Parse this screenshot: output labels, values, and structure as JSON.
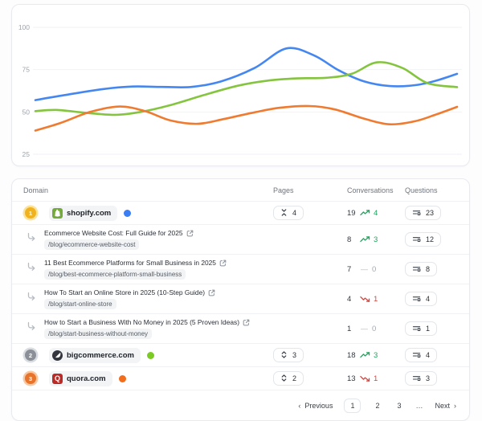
{
  "chart_data": {
    "type": "line",
    "title": "",
    "xlabel": "",
    "ylabel": "",
    "y_ticks": [
      100,
      75,
      50,
      25
    ],
    "ylim": [
      25,
      100
    ],
    "grid": true,
    "legend_position": "none",
    "series": [
      {
        "name": "shopify.com",
        "color": "#4587f1",
        "points": [
          [
            0,
            57
          ],
          [
            0.07,
            60
          ],
          [
            0.16,
            63.5
          ],
          [
            0.23,
            65
          ],
          [
            0.3,
            64.8
          ],
          [
            0.37,
            64.8
          ],
          [
            0.44,
            68
          ],
          [
            0.52,
            76
          ],
          [
            0.595,
            87.5
          ],
          [
            0.66,
            83.5
          ],
          [
            0.72,
            74.5
          ],
          [
            0.78,
            68
          ],
          [
            0.84,
            65.3
          ],
          [
            0.9,
            65.8
          ],
          [
            0.95,
            68.5
          ],
          [
            1,
            72.5
          ]
        ]
      },
      {
        "name": "bigcommerce.com",
        "color": "#84c43e",
        "points": [
          [
            0,
            50.5
          ],
          [
            0.05,
            51.2
          ],
          [
            0.12,
            49.5
          ],
          [
            0.19,
            48.3
          ],
          [
            0.25,
            50
          ],
          [
            0.32,
            54
          ],
          [
            0.4,
            60
          ],
          [
            0.48,
            65.5
          ],
          [
            0.55,
            68.5
          ],
          [
            0.62,
            69.8
          ],
          [
            0.69,
            70.2
          ],
          [
            0.75,
            72.5
          ],
          [
            0.81,
            79.3
          ],
          [
            0.87,
            76
          ],
          [
            0.93,
            67
          ],
          [
            1,
            64.7
          ]
        ]
      },
      {
        "name": "quora.com",
        "color": "#ef7b31",
        "points": [
          [
            0,
            39
          ],
          [
            0.06,
            43.5
          ],
          [
            0.13,
            50
          ],
          [
            0.2,
            53.2
          ],
          [
            0.26,
            50.5
          ],
          [
            0.32,
            45
          ],
          [
            0.385,
            43
          ],
          [
            0.45,
            46
          ],
          [
            0.52,
            49.8
          ],
          [
            0.58,
            52.5
          ],
          [
            0.65,
            53.5
          ],
          [
            0.71,
            51.5
          ],
          [
            0.78,
            46
          ],
          [
            0.84,
            42.7
          ],
          [
            0.9,
            44.5
          ],
          [
            0.95,
            48.5
          ],
          [
            1,
            53
          ]
        ]
      }
    ]
  },
  "table": {
    "headers": {
      "domain": "Domain",
      "pages": "Pages",
      "conversations": "Conversations",
      "questions": "Questions"
    },
    "rows": [
      {
        "rank": "1",
        "domain": "shopify.com",
        "legend_color": "#3b7df2",
        "pages_count": "4",
        "conv": "19",
        "conv_change": "4",
        "questions": "23",
        "pages": [
          {
            "title": "Ecommerce Website Cost: Full Guide for 2025",
            "path": "/blog/ecommerce-website-cost",
            "conv": "8",
            "conv_change": "3",
            "questions": "12"
          },
          {
            "title": "11 Best Ecommerce Platforms for Small Business in 2025",
            "path": "/blog/best-ecommerce-platform-small-business",
            "conv": "7",
            "conv_change": "0",
            "questions": "8"
          },
          {
            "title": "How To Start an Online Store in 2025 (10-Step Guide)",
            "path": "/blog/start-online-store",
            "conv": "4",
            "conv_change": "1",
            "questions": "4"
          },
          {
            "title": "How to Start a Business With No Money in 2025 (5 Proven Ideas)",
            "path": "/blog/start-business-without-money",
            "conv": "1",
            "conv_change": "0",
            "questions": "1"
          }
        ]
      },
      {
        "rank": "2",
        "domain": "bigcommerce.com",
        "legend_color": "#7ccb24",
        "pages_count": "3",
        "conv": "18",
        "conv_change": "3",
        "questions": "4"
      },
      {
        "rank": "3",
        "domain": "quora.com",
        "legend_color": "#f26e1d",
        "pages_count": "2",
        "conv": "13",
        "conv_change": "1",
        "questions": "3"
      }
    ],
    "quora_letter": "Q"
  },
  "pagination": {
    "previous": "Previous",
    "next": "Next",
    "pages": [
      "1",
      "2",
      "3"
    ],
    "active_page": "1",
    "ellipsis": "…",
    "prev_chevron": "‹",
    "next_chevron": "›"
  }
}
